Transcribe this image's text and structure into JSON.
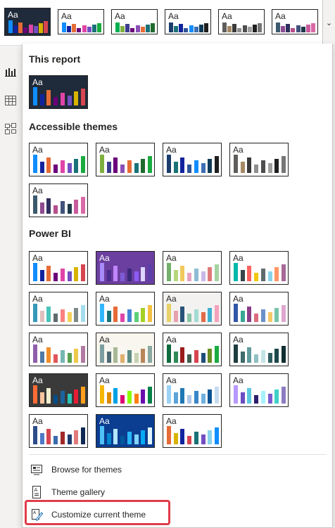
{
  "ribbon": {
    "thumb_label": "Aa",
    "themes": [
      {
        "bg": "#1f2a3a",
        "fg": "#ffffff",
        "bars": [
          "#118dff",
          "#12239e",
          "#e66c37",
          "#6b007b",
          "#e044a7",
          "#744ec2",
          "#d9b300",
          "#d64550"
        ]
      },
      {
        "bg": "#ffffff",
        "fg": "#252423",
        "bars": [
          "#118dff",
          "#12239e",
          "#e66c37",
          "#6b007b",
          "#e044a7",
          "#744ec2",
          "#197278",
          "#1aab40"
        ]
      },
      {
        "bg": "#ffffff",
        "fg": "#252423",
        "bars": [
          "#00b050",
          "#7fb03f",
          "#3d3d8f",
          "#6b007b",
          "#8a4fb5",
          "#e66c37",
          "#197278",
          "#1f6b2e"
        ]
      },
      {
        "bg": "#ffffff",
        "fg": "#252423",
        "bars": [
          "#1b3d6d",
          "#197278",
          "#12239e",
          "#2f5597",
          "#118dff",
          "#3d6fb3",
          "#0f3b57",
          "#1f1f1f"
        ]
      },
      {
        "bg": "#ffffff",
        "fg": "#252423",
        "bars": [
          "#605e5c",
          "#a68a64",
          "#3b3a39",
          "#8f8f8f",
          "#4e4e4e",
          "#a19f9d",
          "#1f1f1f",
          "#767676"
        ]
      },
      {
        "bg": "#ffffff",
        "fg": "#252423",
        "bars": [
          "#3b5a6e",
          "#8e4b8f",
          "#2f2f5f",
          "#b74d8a",
          "#41527d",
          "#1f3a4a",
          "#c85a9d",
          "#d96aa6"
        ]
      }
    ]
  },
  "panel": {
    "this_report": {
      "title": "This report",
      "themes": [
        {
          "bg": "#1f2a3a",
          "fg": "#ffffff",
          "selected": true,
          "bars": [
            "#118dff",
            "#12239e",
            "#e66c37",
            "#6b007b",
            "#e044a7",
            "#744ec2",
            "#d9b300",
            "#d64550"
          ]
        }
      ]
    },
    "accessible": {
      "title": "Accessible themes",
      "themes": [
        {
          "bg": "#ffffff",
          "fg": "#252423",
          "bars": [
            "#118dff",
            "#12239e",
            "#e66c37",
            "#6b007b",
            "#e044a7",
            "#744ec2",
            "#197278",
            "#1aab40"
          ]
        },
        {
          "bg": "#ffffff",
          "fg": "#252423",
          "bars": [
            "#7fb03f",
            "#3d3d8f",
            "#6b007b",
            "#8a4fb5",
            "#e66c37",
            "#197278",
            "#1f6b2e",
            "#1aab40"
          ]
        },
        {
          "bg": "#ffffff",
          "fg": "#252423",
          "bars": [
            "#1b3d6d",
            "#197278",
            "#12239e",
            "#2f5597",
            "#118dff",
            "#3d6fb3",
            "#0f3b57",
            "#1f1f1f"
          ]
        },
        {
          "bg": "#ffffff",
          "fg": "#252423",
          "bars": [
            "#605e5c",
            "#a68a64",
            "#3b3a39",
            "#8f8f8f",
            "#4e4e4e",
            "#a19f9d",
            "#1f1f1f",
            "#767676"
          ]
        },
        {
          "bg": "#ffffff",
          "fg": "#252423",
          "bars": [
            "#3b5a6e",
            "#8e4b8f",
            "#2f2f5f",
            "#b74d8a",
            "#41527d",
            "#1f3a4a",
            "#c85a9d",
            "#d96aa6"
          ]
        }
      ]
    },
    "powerbi": {
      "title": "Power BI",
      "themes": [
        {
          "bg": "#ffffff",
          "fg": "#252423",
          "bars": [
            "#118dff",
            "#12239e",
            "#e66c37",
            "#6b007b",
            "#e044a7",
            "#744ec2",
            "#d9b300",
            "#d64550"
          ]
        },
        {
          "bg": "#6b3fa0",
          "fg": "#ffffff",
          "bars": [
            "#a78bfa",
            "#4a2d8f",
            "#c084fc",
            "#7c5cd6",
            "#3b2a7a",
            "#8b5cf6",
            "#ddd6fe",
            "#5b3fa8"
          ]
        },
        {
          "bg": "#ffffff",
          "fg": "#252423",
          "bars": [
            "#74b06b",
            "#b7d67d",
            "#f2c85b",
            "#e6a3c2",
            "#8fbcd4",
            "#c9b8e8",
            "#e07a7a",
            "#a5d4a0"
          ]
        },
        {
          "bg": "#ffffff",
          "fg": "#252423",
          "bars": [
            "#01b8aa",
            "#374649",
            "#fd625e",
            "#f2c80f",
            "#5f6b6d",
            "#8ad4eb",
            "#fe9666",
            "#a66999"
          ]
        },
        {
          "bg": "#ffffff",
          "fg": "#252423",
          "bars": [
            "#3599b8",
            "#dfbfbf",
            "#4ac5bb",
            "#5f6b6d",
            "#fb8281",
            "#f4d25a",
            "#7f898a",
            "#a4ddee"
          ]
        },
        {
          "bg": "#ffffff",
          "fg": "#252423",
          "bars": [
            "#31b6fd",
            "#197278",
            "#e66c37",
            "#e044a7",
            "#4584d3",
            "#5bd078",
            "#a5d028",
            "#f5c040"
          ]
        },
        {
          "bg": "#f3f2f1",
          "fg": "#252423",
          "bars": [
            "#e8d166",
            "#e6a1ac",
            "#28527a",
            "#8ac4a7",
            "#a3dbd4",
            "#e26a49",
            "#42b0d0",
            "#f4a2bb"
          ]
        },
        {
          "bg": "#ffffff",
          "fg": "#252423",
          "bars": [
            "#3257a8",
            "#37a794",
            "#8b3d88",
            "#dd6b7f",
            "#6b91c9",
            "#f5c869",
            "#77c4a8",
            "#dea6cf"
          ]
        },
        {
          "bg": "#ffffff",
          "fg": "#252423",
          "bars": [
            "#8f5faa",
            "#4e79a7",
            "#f28e2b",
            "#e15759",
            "#76b7b2",
            "#59a14f",
            "#edc948",
            "#b07aa1"
          ]
        },
        {
          "bg": "#f8f6ee",
          "fg": "#252423",
          "bars": [
            "#7c9ea0",
            "#4e6b75",
            "#a7b896",
            "#e0b06e",
            "#5d8c82",
            "#c7d2b2",
            "#b8865b",
            "#8aa9a2"
          ]
        },
        {
          "bg": "#ffffff",
          "fg": "#252423",
          "bars": [
            "#0d6b3e",
            "#2e8b57",
            "#9c1b1b",
            "#3f5f4f",
            "#d64550",
            "#1f4e79",
            "#6b8e23",
            "#1aab40"
          ]
        },
        {
          "bg": "#ffffff",
          "fg": "#252423",
          "bars": [
            "#1d3d3f",
            "#3e6a6c",
            "#5f9b9d",
            "#8fc1c3",
            "#c3e4e6",
            "#2f5e60",
            "#1a4749",
            "#0f2e30"
          ]
        },
        {
          "bg": "#3a3a3a",
          "fg": "#ffffff",
          "bars": [
            "#ff6b35",
            "#f7c59f",
            "#efefd0",
            "#004e89",
            "#1a659e",
            "#2ec4b6",
            "#e71d36",
            "#ff9f1c"
          ]
        },
        {
          "bg": "#ffffff",
          "fg": "#252423",
          "bars": [
            "#f5b700",
            "#dc8a00",
            "#00a1e4",
            "#dc0073",
            "#89fc00",
            "#ff7f11",
            "#6a0dad",
            "#008148"
          ]
        },
        {
          "bg": "#ffffff",
          "fg": "#252423",
          "bars": [
            "#9ad1f5",
            "#5ba4d9",
            "#1f77b4",
            "#aec7e8",
            "#3a86c8",
            "#6fb0e0",
            "#0b5394",
            "#c6dbef"
          ]
        },
        {
          "bg": "#ffffff",
          "fg": "#252423",
          "bars": [
            "#b799ff",
            "#6a4fc2",
            "#5cc8e0",
            "#2d1e6b",
            "#a6f0ff",
            "#7b5ccf",
            "#3fd1c6",
            "#8e7cc3"
          ]
        },
        {
          "bg": "#ffffff",
          "fg": "#252423",
          "bars": [
            "#2d4d8a",
            "#4f79c7",
            "#d64550",
            "#3a6bb0",
            "#a02828",
            "#1f3b6e",
            "#e07a7a",
            "#102a54"
          ]
        },
        {
          "bg": "#0b3d91",
          "fg": "#ffffff",
          "bars": [
            "#4fc3f7",
            "#0288d1",
            "#b3e5fc",
            "#01579b",
            "#29b6f6",
            "#81d4fa",
            "#03a9f4",
            "#e1f5fe"
          ]
        },
        {
          "bg": "#ffffff",
          "fg": "#252423",
          "bars": [
            "#e66c37",
            "#d9b300",
            "#12239e",
            "#d64550",
            "#197278",
            "#744ec2",
            "#8ad4eb",
            "#118dff"
          ]
        }
      ]
    },
    "actions": [
      {
        "icon": "browse-themes-icon",
        "label": "Browse for themes"
      },
      {
        "icon": "theme-gallery-icon",
        "label": "Theme gallery"
      },
      {
        "icon": "customize-theme-icon",
        "label": "Customize current theme"
      }
    ]
  },
  "colors": {
    "highlight": "#e03c4b",
    "accent": "#118dff"
  }
}
